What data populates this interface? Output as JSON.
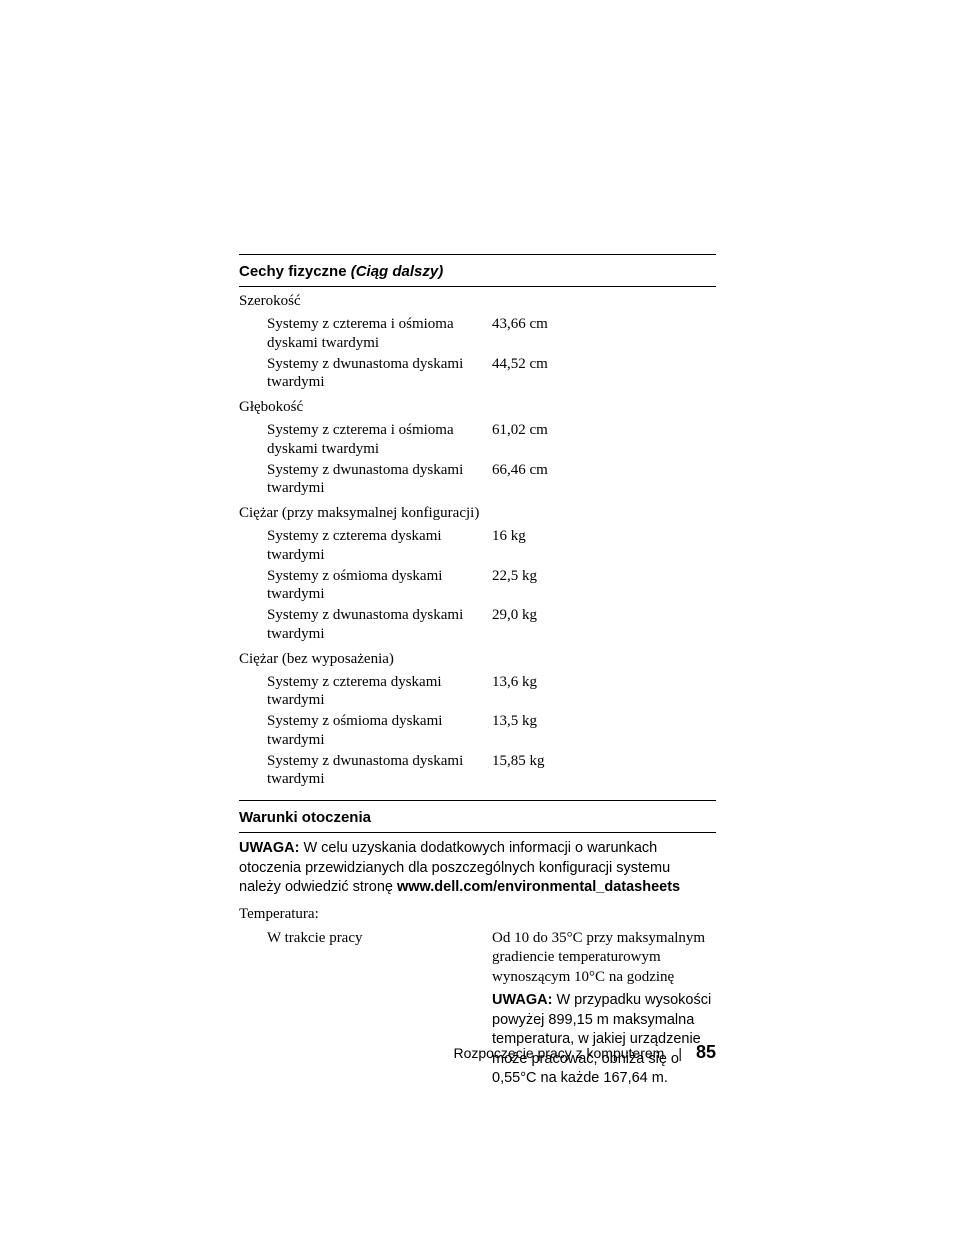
{
  "section1": {
    "title_main": "Cechy fizyczne",
    "title_cont": " (Ciąg dalszy)",
    "groups": [
      {
        "label": "Szerokość",
        "rows": [
          {
            "label": "Systemy z czterema i ośmioma dyskami twardymi",
            "value": "43,66 cm"
          },
          {
            "label": "Systemy z dwunastoma dyskami twardymi",
            "value": "44,52 cm"
          }
        ]
      },
      {
        "label": "Głębokość",
        "rows": [
          {
            "label": "Systemy z czterema i ośmioma dyskami twardymi",
            "value": "61,02 cm"
          },
          {
            "label": "Systemy z dwunastoma dyskami twardymi",
            "value": "66,46 cm"
          }
        ]
      },
      {
        "label": "Ciężar (przy maksymalnej konfiguracji)",
        "rows": [
          {
            "label": "Systemy z czterema dyskami twardymi",
            "value": "16 kg"
          },
          {
            "label": "Systemy z ośmioma dyskami twardymi",
            "value": "22,5 kg"
          },
          {
            "label": "Systemy z dwunastoma dyskami twardymi",
            "value": "29,0 kg"
          }
        ]
      },
      {
        "label": "Ciężar (bez wyposażenia)",
        "rows": [
          {
            "label": "Systemy z czterema dyskami twardymi",
            "value": "13,6 kg"
          },
          {
            "label": "Systemy z ośmioma dyskami twardymi",
            "value": "13,5 kg"
          },
          {
            "label": "Systemy z dwunastoma dyskami twardymi",
            "value": "15,85 kg"
          }
        ]
      }
    ]
  },
  "section2": {
    "title": "Warunki otoczenia",
    "note_prefix": "UWAGA:",
    "note_body": " W celu uzyskania dodatkowych informacji o warunkach otoczenia przewidzianych dla poszczególnych konfiguracji systemu należy odwiedzić stronę ",
    "note_url": "www.dell.com/environmental_datasheets",
    "temp_label": "Temperatura:",
    "operating_label": "W trakcie pracy",
    "operating_value": "Od 10 do 35°C przy maksymalnym gradiencie temperaturowym wynoszącym 10°C na godzinę",
    "inline_note_prefix": "UWAGA:",
    "inline_note_body": " W przypadku wysokości powyżej 899,15 m maksymalna temperatura, w jakiej urządzenie może pracować, obniża się o 0,55°C na każde 167,64 m."
  },
  "footer": {
    "text": "Rozpoczęcie pracy z komputerem",
    "page": "85"
  }
}
